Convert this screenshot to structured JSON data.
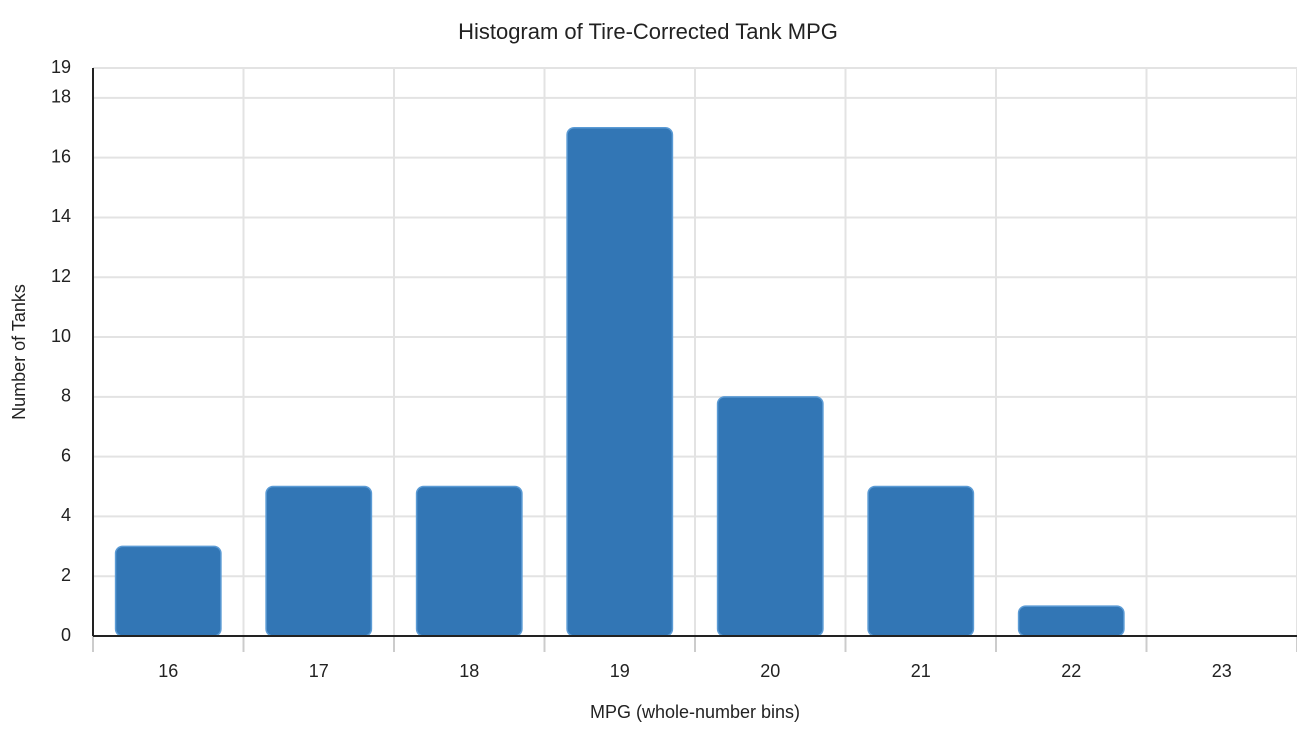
{
  "chart_data": {
    "type": "bar",
    "title": "Histogram of Tire-Corrected Tank MPG",
    "x_label": "MPG (whole-number bins)",
    "y_label": "Number of Tanks",
    "categories": [
      "16",
      "17",
      "18",
      "19",
      "20",
      "21",
      "22",
      "23"
    ],
    "values": [
      3,
      5,
      5,
      17,
      8,
      5,
      1,
      0
    ],
    "color": "#3276b5",
    "ylim": [
      0,
      19
    ],
    "yticks": [
      0,
      2,
      4,
      6,
      8,
      10,
      12,
      14,
      16,
      18,
      19
    ],
    "grid": true
  }
}
